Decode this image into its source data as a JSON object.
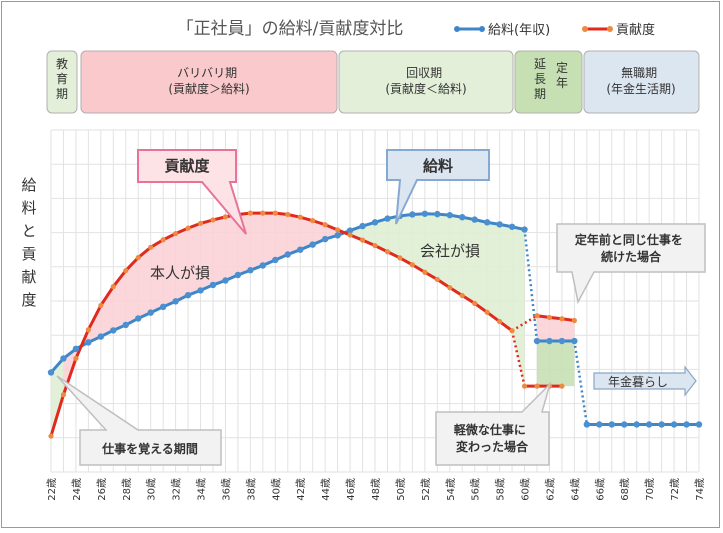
{
  "chart_data": {
    "type": "line",
    "title": "「正社員」の給料/貢献度対比",
    "ylabel": "給料と貢献度",
    "xlabel": "",
    "ylim": [
      0,
      100
    ],
    "grid": true,
    "legend_position": "top-right",
    "categories": [
      "22歳",
      "23歳",
      "24歳",
      "25歳",
      "26歳",
      "27歳",
      "28歳",
      "29歳",
      "30歳",
      "31歳",
      "32歳",
      "33歳",
      "34歳",
      "35歳",
      "36歳",
      "37歳",
      "38歳",
      "39歳",
      "40歳",
      "41歳",
      "42歳",
      "43歳",
      "44歳",
      "45歳",
      "46歳",
      "47歳",
      "48歳",
      "49歳",
      "50歳",
      "51歳",
      "52歳",
      "53歳",
      "54歳",
      "55歳",
      "56歳",
      "57歳",
      "58歳",
      "59歳",
      "60歳",
      "61歳",
      "62歳",
      "63歳",
      "64歳",
      "65歳",
      "66歳",
      "67歳",
      "68歳",
      "69歳",
      "70歳",
      "71歳",
      "72歳",
      "73歳",
      "74歳"
    ],
    "x_tick_labels": [
      "22歳",
      "24歳",
      "26歳",
      "28歳",
      "30歳",
      "32歳",
      "34歳",
      "36歳",
      "38歳",
      "40歳",
      "42歳",
      "44歳",
      "46歳",
      "48歳",
      "50歳",
      "52歳",
      "54歳",
      "56歳",
      "58歳",
      "60歳",
      "62歳",
      "64歳",
      "66歳",
      "68歳",
      "70歳",
      "72歳",
      "74歳"
    ],
    "series": [
      {
        "name": "給料(年収)",
        "color": "#3f86c9",
        "values": [
          29.1,
          33.2,
          36.0,
          37.9,
          39.6,
          41.4,
          43.0,
          44.9,
          46.6,
          48.3,
          49.9,
          51.7,
          53.1,
          54.7,
          56.0,
          57.6,
          59.0,
          60.4,
          62.0,
          63.6,
          65.0,
          66.5,
          68.1,
          69.2,
          70.6,
          71.9,
          73.0,
          74.1,
          74.9,
          75.3,
          75.5,
          75.4,
          75.1,
          74.5,
          73.8,
          73.0,
          72.4,
          71.7,
          70.9,
          38.3,
          38.3,
          38.3,
          38.3,
          13.9,
          13.9,
          13.9,
          13.9,
          13.9,
          13.9,
          13.9,
          13.9,
          13.9,
          13.9
        ],
        "alt_values_after_60": [
          38.3,
          38.3,
          38.3,
          38.3
        ]
      },
      {
        "name": "貢献度",
        "color": "#e02a1e",
        "values": [
          10.5,
          22.6,
          33.2,
          41.6,
          48.7,
          54.2,
          58.9,
          62.7,
          65.7,
          67.9,
          69.7,
          71.3,
          72.7,
          73.7,
          74.6,
          75.3,
          75.7,
          75.7,
          75.7,
          75.3,
          74.5,
          73.5,
          72.3,
          70.8,
          69.3,
          67.8,
          66.2,
          64.4,
          62.6,
          60.6,
          58.4,
          56.3,
          53.9,
          51.6,
          49.3,
          46.7,
          44.0,
          41.3,
          25.1,
          25.1,
          25.1,
          25.1,
          null,
          null,
          null,
          null,
          null,
          null,
          null,
          null,
          null,
          null,
          null
        ],
        "alt_values_after_60": [
          45.7,
          45.2,
          44.8,
          44.3
        ]
      }
    ],
    "phases": [
      {
        "label": "教育期",
        "color": "#e3efd9"
      },
      {
        "label_lines": [
          "バリバリ期",
          "(貢献度＞給料)"
        ],
        "color": "#f9c9cb"
      },
      {
        "label_lines": [
          "回収期",
          "(貢献度＜給料)"
        ],
        "color": "#e3efd9"
      },
      {
        "label": "延長期",
        "label2": "定年",
        "color": "#c6e0b4"
      },
      {
        "label_lines": [
          "無職期",
          "(年金生活期)"
        ],
        "color": "#dce6f1"
      }
    ],
    "annotations": {
      "contribution_callout": "貢献度",
      "salary_callout": "給料",
      "person_loss": "本人が損",
      "company_loss": "会社が損",
      "learning_period": "仕事を覚える期間",
      "same_job_after_retire": [
        "定年前と同じ仕事を",
        "続けた場合"
      ],
      "lighter_job_after_retire": [
        "軽微な仕事に",
        "変わった場合"
      ],
      "pension": "年金暮らし"
    }
  }
}
